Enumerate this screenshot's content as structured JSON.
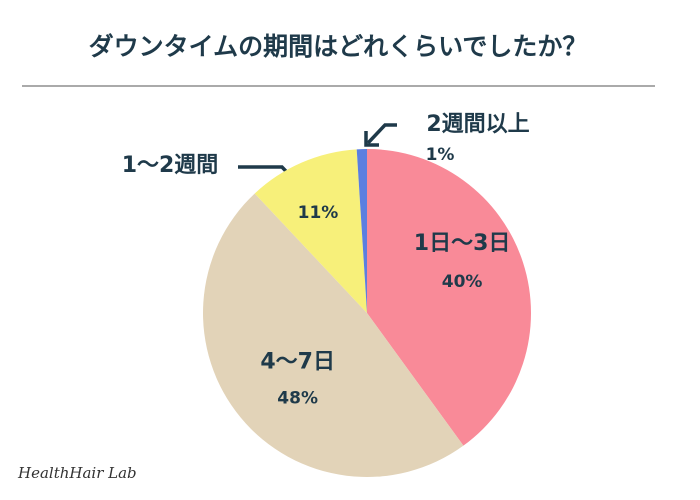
{
  "chart_data": {
    "type": "pie",
    "title": "ダウンタイムの期間はどれくらいでしたか？",
    "categories": [
      "1日〜3日",
      "4〜7日",
      "1〜2週間",
      "2週間以上"
    ],
    "values": [
      40,
      48,
      11,
      1
    ],
    "value_labels": [
      "40%",
      "48%",
      "11%",
      "1%"
    ],
    "colors": [
      "#f98a98",
      "#e2d3b8",
      "#f7f07a",
      "#5b7fe0"
    ]
  },
  "footer": {
    "watermark": "HealthHair Lab"
  }
}
